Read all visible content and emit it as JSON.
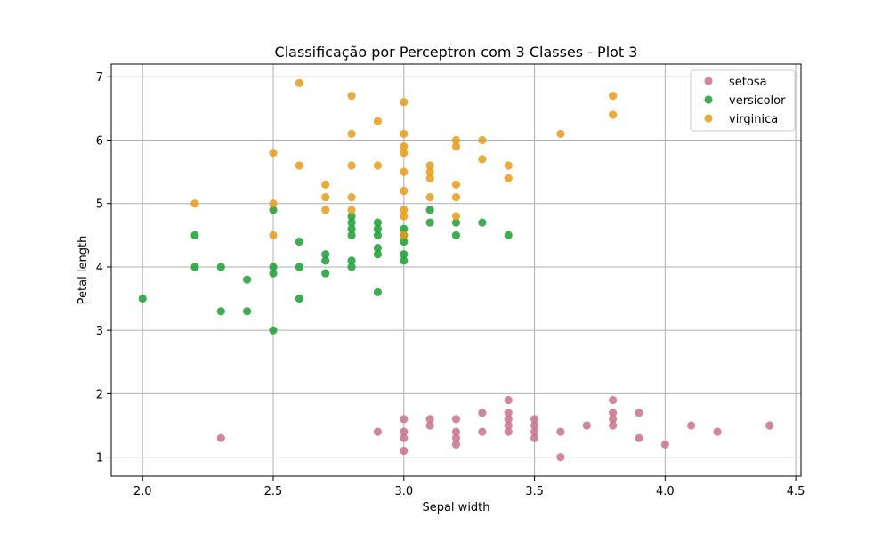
{
  "chart_data": {
    "type": "scatter",
    "title": "Classificação por Perceptron com 3 Classes - Plot 3",
    "xlabel": "Sepal width",
    "ylabel": "Petal length",
    "xlim": [
      1.88,
      4.52
    ],
    "ylim": [
      0.7,
      7.2
    ],
    "xticks": [
      "2.0",
      "2.5",
      "3.0",
      "3.5",
      "4.0",
      "4.5"
    ],
    "yticks": [
      "1",
      "2",
      "3",
      "4",
      "5",
      "6",
      "7"
    ],
    "grid": true,
    "legend_position": "top-right",
    "series": [
      {
        "name": "setosa",
        "color": "#c9728a",
        "points": [
          [
            2.3,
            1.3
          ],
          [
            2.9,
            1.4
          ],
          [
            3.0,
            1.1
          ],
          [
            3.0,
            1.3
          ],
          [
            3.0,
            1.4
          ],
          [
            3.0,
            1.6
          ],
          [
            3.1,
            1.5
          ],
          [
            3.1,
            1.6
          ],
          [
            3.2,
            1.2
          ],
          [
            3.2,
            1.3
          ],
          [
            3.2,
            1.4
          ],
          [
            3.2,
            1.6
          ],
          [
            3.3,
            1.4
          ],
          [
            3.3,
            1.7
          ],
          [
            3.4,
            1.4
          ],
          [
            3.4,
            1.5
          ],
          [
            3.4,
            1.6
          ],
          [
            3.4,
            1.7
          ],
          [
            3.4,
            1.9
          ],
          [
            3.5,
            1.3
          ],
          [
            3.5,
            1.4
          ],
          [
            3.5,
            1.5
          ],
          [
            3.5,
            1.6
          ],
          [
            3.6,
            1.0
          ],
          [
            3.6,
            1.4
          ],
          [
            3.7,
            1.5
          ],
          [
            3.8,
            1.5
          ],
          [
            3.8,
            1.6
          ],
          [
            3.8,
            1.7
          ],
          [
            3.8,
            1.9
          ],
          [
            3.9,
            1.3
          ],
          [
            3.9,
            1.7
          ],
          [
            4.0,
            1.2
          ],
          [
            4.1,
            1.5
          ],
          [
            4.2,
            1.4
          ],
          [
            4.4,
            1.5
          ]
        ]
      },
      {
        "name": "versicolor",
        "color": "#1aa032",
        "points": [
          [
            2.0,
            3.5
          ],
          [
            2.2,
            4.0
          ],
          [
            2.2,
            4.5
          ],
          [
            2.3,
            3.3
          ],
          [
            2.3,
            4.0
          ],
          [
            2.4,
            3.3
          ],
          [
            2.4,
            3.8
          ],
          [
            2.5,
            3.0
          ],
          [
            2.5,
            3.9
          ],
          [
            2.5,
            4.0
          ],
          [
            2.5,
            4.9
          ],
          [
            2.6,
            3.5
          ],
          [
            2.6,
            4.0
          ],
          [
            2.6,
            4.4
          ],
          [
            2.7,
            3.9
          ],
          [
            2.7,
            4.1
          ],
          [
            2.7,
            4.2
          ],
          [
            2.8,
            4.0
          ],
          [
            2.8,
            4.1
          ],
          [
            2.8,
            4.5
          ],
          [
            2.8,
            4.6
          ],
          [
            2.8,
            4.7
          ],
          [
            2.8,
            4.8
          ],
          [
            2.9,
            3.6
          ],
          [
            2.9,
            4.2
          ],
          [
            2.9,
            4.3
          ],
          [
            2.9,
            4.5
          ],
          [
            2.9,
            4.6
          ],
          [
            2.9,
            4.7
          ],
          [
            3.0,
            4.1
          ],
          [
            3.0,
            4.2
          ],
          [
            3.0,
            4.4
          ],
          [
            3.0,
            4.5
          ],
          [
            3.0,
            4.6
          ],
          [
            3.1,
            4.7
          ],
          [
            3.1,
            4.9
          ],
          [
            3.2,
            4.5
          ],
          [
            3.2,
            4.7
          ],
          [
            3.3,
            4.7
          ],
          [
            3.4,
            4.5
          ]
        ]
      },
      {
        "name": "virginica",
        "color": "#e89b16",
        "points": [
          [
            2.2,
            5.0
          ],
          [
            2.5,
            4.5
          ],
          [
            2.5,
            5.0
          ],
          [
            2.5,
            5.8
          ],
          [
            2.6,
            5.6
          ],
          [
            2.6,
            6.9
          ],
          [
            2.7,
            4.9
          ],
          [
            2.7,
            5.1
          ],
          [
            2.7,
            5.3
          ],
          [
            2.8,
            4.9
          ],
          [
            2.8,
            5.1
          ],
          [
            2.8,
            5.6
          ],
          [
            2.8,
            6.1
          ],
          [
            2.8,
            6.7
          ],
          [
            2.9,
            5.6
          ],
          [
            2.9,
            6.3
          ],
          [
            3.0,
            4.5
          ],
          [
            3.0,
            4.8
          ],
          [
            3.0,
            4.9
          ],
          [
            3.0,
            5.2
          ],
          [
            3.0,
            5.5
          ],
          [
            3.0,
            5.8
          ],
          [
            3.0,
            5.9
          ],
          [
            3.0,
            6.1
          ],
          [
            3.0,
            6.6
          ],
          [
            3.1,
            5.1
          ],
          [
            3.1,
            5.4
          ],
          [
            3.1,
            5.5
          ],
          [
            3.1,
            5.6
          ],
          [
            3.2,
            4.8
          ],
          [
            3.2,
            5.1
          ],
          [
            3.2,
            5.3
          ],
          [
            3.2,
            5.9
          ],
          [
            3.2,
            6.0
          ],
          [
            3.3,
            5.7
          ],
          [
            3.3,
            6.0
          ],
          [
            3.4,
            5.4
          ],
          [
            3.4,
            5.6
          ],
          [
            3.6,
            6.1
          ],
          [
            3.8,
            6.4
          ],
          [
            3.8,
            6.7
          ]
        ]
      }
    ]
  }
}
